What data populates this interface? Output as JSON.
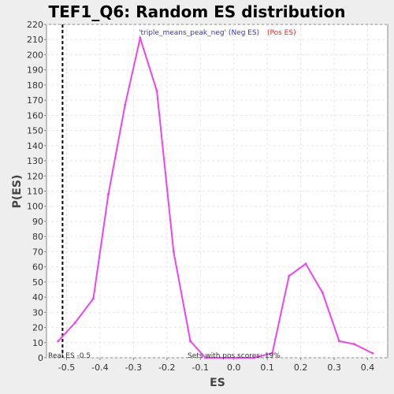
{
  "chart_data": {
    "type": "line",
    "title": "TEF1_Q6: Random ES distribution",
    "xlabel": "ES",
    "ylabel": "P(ES)",
    "xlim": [
      -0.56,
      0.46
    ],
    "ylim": [
      0,
      220
    ],
    "x_ticks": [
      "-0.5",
      "-0.4",
      "-0.3",
      "-0.2",
      "-0.1",
      "0.0",
      "0.1",
      "0.2",
      "0.3",
      "0.4"
    ],
    "y_ticks": [
      "0",
      "10",
      "20",
      "30",
      "40",
      "50",
      "60",
      "70",
      "80",
      "90",
      "100",
      "110",
      "120",
      "130",
      "140",
      "150",
      "160",
      "170",
      "180",
      "190",
      "200",
      "210",
      "220"
    ],
    "grid": true,
    "legend": {
      "position": "top-center",
      "neg_label": "'triple_means_peak_neg' (Neg ES)",
      "pos_label": "(Pos ES)",
      "neg_color": "#3333cc",
      "pos_color": "#ee2222"
    },
    "series": [
      {
        "name": "Random ES distribution",
        "color": "#ee44ee",
        "x": [
          -0.525,
          -0.475,
          -0.42,
          -0.375,
          -0.325,
          -0.28,
          -0.23,
          -0.18,
          -0.13,
          -0.085,
          -0.04,
          0.01,
          0.06,
          0.115,
          0.165,
          0.215,
          0.265,
          0.315,
          0.36,
          0.415
        ],
        "y": [
          11,
          23,
          39,
          108,
          167,
          211,
          176,
          70,
          11,
          0,
          0,
          0,
          0,
          3,
          54,
          62,
          43,
          11,
          9,
          3
        ]
      }
    ],
    "real_es": {
      "value": -0.5,
      "label": "Real ES -0.5",
      "line_style": "dashed",
      "color": "#000000"
    },
    "pos_scores_label": "Sets with pos scores: 19%"
  }
}
